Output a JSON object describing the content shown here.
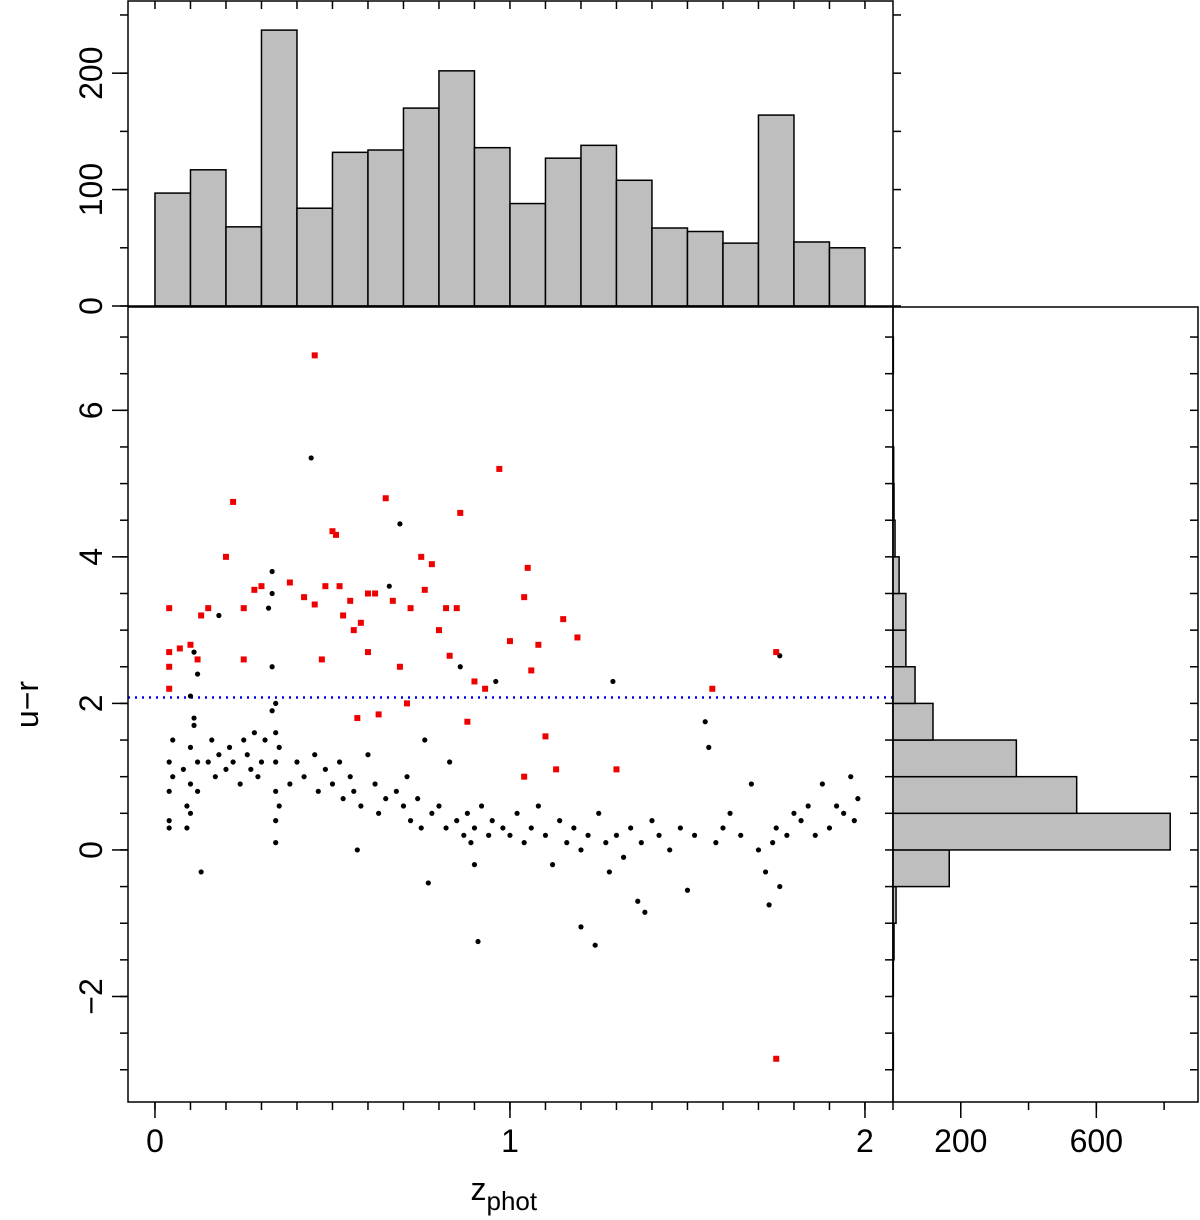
{
  "chart_data": [
    {
      "type": "histogram",
      "orientation": "vertical",
      "bins": [
        0,
        0.1,
        0.2,
        0.3,
        0.4,
        0.5,
        0.6,
        0.7,
        0.8,
        0.9,
        1.0,
        1.1,
        1.2,
        1.3,
        1.4,
        1.5,
        1.6,
        1.7,
        1.8,
        1.9,
        2.0
      ],
      "counts": [
        97,
        117,
        68,
        237,
        84,
        132,
        134,
        170,
        202,
        136,
        88,
        127,
        138,
        108,
        67,
        64,
        54,
        164,
        55,
        50
      ],
      "color": "#bebebe",
      "xlim": [
        -0.076,
        2.079
      ],
      "ylim": [
        0,
        262
      ],
      "yticks": [
        0,
        100,
        200
      ],
      "minor_ticks": {
        "x": 0.1,
        "y": 50
      }
    },
    {
      "type": "scatter",
      "xlim": [
        -0.076,
        2.079
      ],
      "ylim": [
        -3.44,
        7.41
      ],
      "xticks": [
        0,
        1,
        2
      ],
      "yticks": [
        {
          "value": -2,
          "label": "−2"
        },
        0,
        2,
        4,
        6
      ],
      "minor_ticks": {
        "x": 0.1,
        "y": 0.5
      },
      "xlabel": {
        "text": "z",
        "subscript": "phot"
      },
      "ylabel": "u−r",
      "hline": {
        "value": 2.08,
        "color": "#0000ee"
      },
      "series": [
        {
          "color": "#000000",
          "marker": "circle",
          "x": [
            0.04,
            0.04,
            0.04,
            0.05,
            0.04,
            0.05,
            0.08,
            0.09,
            0.09,
            0.1,
            0.1,
            0.11,
            0.1,
            0.11,
            0.12,
            0.12,
            0.12,
            0.13,
            0.11,
            0.1,
            0.15,
            0.16,
            0.17,
            0.18,
            0.18,
            0.2,
            0.21,
            0.22,
            0.24,
            0.25,
            0.26,
            0.27,
            0.28,
            0.29,
            0.33,
            0.33,
            0.33,
            0.34,
            0.34,
            0.34,
            0.34,
            0.34,
            0.34,
            0.35,
            0.33,
            0.32,
            0.35,
            0.31,
            0.3,
            0.38,
            0.4,
            0.42,
            0.44,
            0.45,
            0.46,
            0.47,
            0.48,
            0.5,
            0.52,
            0.53,
            0.55,
            0.56,
            0.57,
            0.58,
            0.6,
            0.62,
            0.63,
            0.65,
            0.66,
            0.68,
            0.69,
            0.7,
            0.71,
            0.72,
            0.74,
            0.75,
            0.76,
            0.77,
            0.78,
            0.8,
            0.82,
            0.83,
            0.85,
            0.86,
            0.87,
            0.88,
            0.89,
            0.9,
            0.9,
            0.91,
            0.92,
            0.94,
            0.95,
            0.96,
            0.98,
            1.0,
            1.02,
            1.04,
            1.06,
            1.08,
            1.1,
            1.12,
            1.14,
            1.16,
            1.18,
            1.2,
            1.2,
            1.22,
            1.24,
            1.25,
            1.27,
            1.28,
            1.29,
            1.3,
            1.32,
            1.34,
            1.36,
            1.37,
            1.38,
            1.4,
            1.42,
            1.45,
            1.48,
            1.5,
            1.52,
            1.55,
            1.56,
            1.58,
            1.6,
            1.62,
            1.65,
            1.68,
            1.7,
            1.72,
            1.73,
            1.74,
            1.75,
            1.76,
            1.76,
            1.78,
            1.8,
            1.82,
            1.84,
            1.86,
            1.88,
            1.9,
            1.92,
            1.94,
            1.96,
            1.97,
            1.98
          ],
          "y": [
            1.2,
            0.8,
            0.4,
            1.5,
            0.3,
            1.0,
            1.1,
            0.6,
            0.3,
            1.4,
            0.9,
            2.7,
            0.5,
            1.7,
            1.2,
            0.8,
            2.4,
            -0.3,
            1.8,
            2.1,
            1.2,
            1.5,
            1.0,
            3.2,
            1.3,
            1.1,
            1.4,
            1.2,
            0.9,
            1.5,
            1.3,
            1.1,
            1.6,
            1.0,
            3.8,
            3.5,
            2.5,
            2.0,
            1.6,
            1.2,
            0.8,
            0.4,
            0.1,
            1.4,
            1.9,
            3.3,
            0.6,
            1.5,
            1.2,
            0.9,
            1.2,
            1.0,
            5.35,
            1.3,
            0.8,
            2.6,
            1.1,
            0.9,
            1.2,
            0.7,
            1.0,
            0.8,
            0.0,
            0.6,
            1.3,
            0.9,
            0.5,
            0.7,
            3.6,
            0.8,
            4.45,
            0.6,
            1.0,
            0.4,
            0.7,
            0.3,
            1.5,
            -0.45,
            0.5,
            0.6,
            0.3,
            1.2,
            0.4,
            2.5,
            0.2,
            0.5,
            0.1,
            0.3,
            -0.2,
            -1.25,
            0.6,
            0.2,
            0.4,
            2.3,
            0.3,
            0.2,
            0.5,
            0.1,
            0.3,
            0.6,
            0.2,
            -0.2,
            0.4,
            0.1,
            0.3,
            0.0,
            -1.05,
            0.2,
            -1.3,
            0.5,
            0.1,
            -0.3,
            2.3,
            0.2,
            -0.1,
            0.3,
            -0.7,
            0.1,
            -0.85,
            0.4,
            0.2,
            0.0,
            0.3,
            -0.55,
            0.2,
            1.75,
            1.4,
            0.1,
            0.3,
            0.5,
            0.2,
            0.9,
            0.0,
            -0.3,
            -0.75,
            0.1,
            0.3,
            2.65,
            -0.5,
            0.2,
            0.5,
            0.4,
            0.6,
            0.2,
            0.9,
            0.3,
            0.6,
            0.5,
            1.0,
            0.4,
            0.7
          ]
        },
        {
          "color": "#ee0000",
          "marker": "square",
          "x": [
            0.04,
            0.04,
            0.04,
            0.04,
            0.07,
            0.1,
            0.12,
            0.13,
            0.15,
            0.2,
            0.22,
            0.25,
            0.25,
            0.28,
            0.3,
            0.38,
            0.42,
            0.45,
            0.45,
            0.47,
            0.48,
            0.5,
            0.51,
            0.52,
            0.53,
            0.55,
            0.56,
            0.58,
            0.6,
            0.6,
            0.62,
            0.63,
            0.65,
            0.67,
            0.69,
            0.72,
            0.75,
            0.76,
            0.78,
            0.8,
            0.82,
            0.83,
            0.85,
            0.86,
            0.88,
            0.9,
            0.93,
            0.97,
            1.0,
            1.04,
            1.05,
            1.06,
            1.08,
            1.1,
            1.13,
            1.15,
            1.19,
            1.3,
            1.57,
            1.75,
            1.75,
            1.04,
            0.71,
            0.57
          ],
          "y": [
            3.3,
            2.7,
            2.5,
            2.2,
            2.75,
            2.8,
            2.6,
            3.2,
            3.3,
            4.0,
            4.75,
            3.3,
            2.6,
            3.55,
            3.6,
            3.65,
            3.45,
            3.35,
            6.75,
            2.6,
            3.6,
            4.35,
            4.3,
            3.6,
            3.2,
            3.4,
            3.0,
            3.1,
            3.5,
            2.7,
            3.5,
            1.85,
            4.8,
            3.4,
            2.5,
            3.3,
            4.0,
            3.55,
            3.9,
            3.0,
            3.3,
            2.65,
            3.3,
            4.6,
            1.75,
            2.3,
            2.2,
            5.2,
            2.85,
            3.45,
            3.85,
            2.45,
            2.8,
            1.55,
            1.1,
            3.15,
            2.9,
            1.1,
            2.2,
            2.7,
            -2.85,
            1.0,
            2.0,
            1.8
          ]
        }
      ]
    },
    {
      "type": "histogram",
      "orientation": "horizontal",
      "bins": [
        -3,
        -2.5,
        -2,
        -1.5,
        -1,
        -0.5,
        0,
        0.5,
        1,
        1.5,
        2,
        2.5,
        3,
        3.5,
        4,
        4.5,
        5,
        5.5,
        6,
        6.5,
        7
      ],
      "counts": [
        1,
        0,
        1,
        3,
        9,
        166,
        818,
        542,
        364,
        118,
        65,
        38,
        38,
        18,
        6,
        3,
        2,
        0,
        0,
        1
      ],
      "color": "#bebebe",
      "xlim": [
        0,
        900
      ],
      "ylim": [
        -3.44,
        7.41
      ],
      "xticks": [
        200,
        600
      ],
      "minor_ticks": {
        "x": 200,
        "y": 0.5
      }
    }
  ]
}
